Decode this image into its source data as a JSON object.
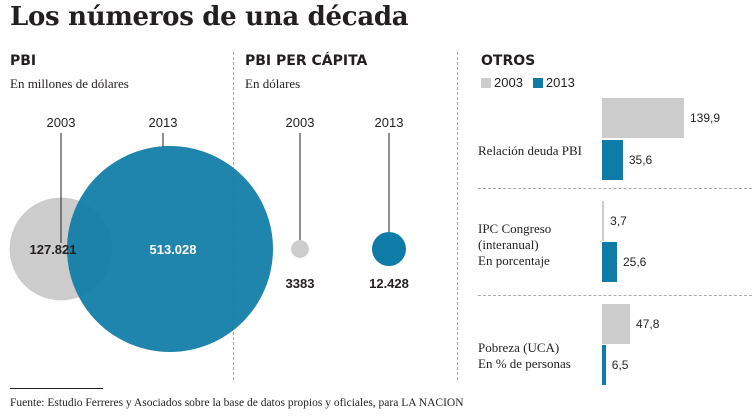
{
  "title": "Los números de una década",
  "colors": {
    "c2003": "#cccccc",
    "c2013": "#0e7ca7",
    "text": "#231f20"
  },
  "legend": {
    "y2003": "2003",
    "y2013": "2013"
  },
  "source": "Fuente: Estudio Ferreres y Asociados sobre la base de datos propios y oficiales, para LA NACION",
  "chart_data": [
    {
      "type": "bubble",
      "title": "PBI",
      "subtitle": "En millones de dólares",
      "series": [
        {
          "name": "2003",
          "value": 127821,
          "value_label": "127.821"
        },
        {
          "name": "2013",
          "value": 513028,
          "value_label": "513.028"
        }
      ]
    },
    {
      "type": "bubble",
      "title": "PBI PER CÁPITA",
      "subtitle": "En dólares",
      "series": [
        {
          "name": "2003",
          "value": 3383,
          "value_label": "3383"
        },
        {
          "name": "2013",
          "value": 12428,
          "value_label": "12.428"
        }
      ]
    },
    {
      "type": "bar",
      "title": "OTROS",
      "series_names": [
        "2003",
        "2013"
      ],
      "max_value": 139.9,
      "categories": [
        {
          "label_lines": [
            "Relación deuda PBI"
          ],
          "v2003": 139.9,
          "v2013": 35.6,
          "l2003": "139,9",
          "l2013": "35,6"
        },
        {
          "label_lines": [
            "IPC Congreso",
            "(interanual)",
            "En porcentaje"
          ],
          "v2003": 3.7,
          "v2013": 25.6,
          "l2003": "3,7",
          "l2013": "25,6"
        },
        {
          "label_lines": [
            "Pobreza  (UCA)",
            "En % de personas"
          ],
          "v2003": 47.8,
          "v2013": 6.5,
          "l2003": "47,8",
          "l2013": "6,5"
        }
      ]
    }
  ]
}
